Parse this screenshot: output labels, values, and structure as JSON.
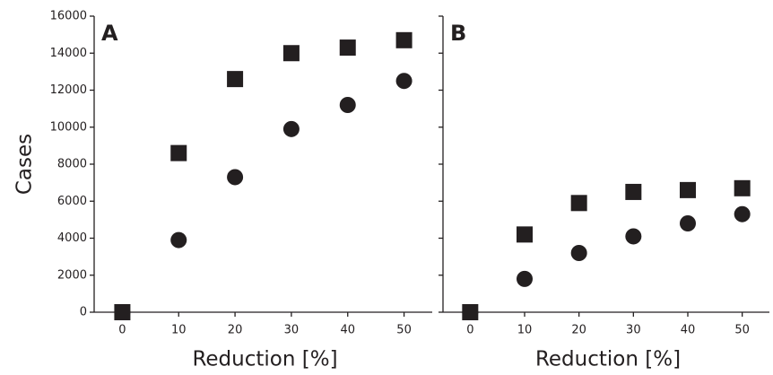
{
  "chart_data": [
    {
      "type": "scatter",
      "title": "A",
      "ylabel": "Cases",
      "xlabel": "Reduction [%]",
      "xlim": [
        -5,
        55
      ],
      "xticks": [
        0,
        10,
        20,
        30,
        40,
        50
      ],
      "ylim": [
        0,
        16000
      ],
      "yticks": [
        0,
        2000,
        4000,
        6000,
        8000,
        10000,
        12000,
        14000,
        16000
      ],
      "show_ytick_labels": true,
      "series": [
        {
          "marker": "square",
          "color": "#231f20",
          "x": [
            0,
            10,
            20,
            30,
            40,
            50
          ],
          "values": [
            0,
            8600,
            12600,
            14000,
            14300,
            14700
          ]
        },
        {
          "marker": "circle",
          "color": "#231f20",
          "x": [
            0,
            10,
            20,
            30,
            40,
            50
          ],
          "values": [
            0,
            3900,
            7300,
            9900,
            11200,
            12500
          ]
        }
      ]
    },
    {
      "type": "scatter",
      "title": "B",
      "xlabel": "Reduction [%]",
      "xlim": [
        -5,
        55
      ],
      "xticks": [
        0,
        10,
        20,
        30,
        40,
        50
      ],
      "ylim": [
        0,
        16000
      ],
      "yticks": [
        0,
        2000,
        4000,
        6000,
        8000,
        10000,
        12000,
        14000,
        16000
      ],
      "show_ytick_labels": false,
      "series": [
        {
          "marker": "square",
          "color": "#231f20",
          "x": [
            0,
            10,
            20,
            30,
            40,
            50
          ],
          "values": [
            0,
            4200,
            5900,
            6500,
            6600,
            6700
          ]
        },
        {
          "marker": "circle",
          "color": "#231f20",
          "x": [
            0,
            10,
            20,
            30,
            40,
            50
          ],
          "values": [
            0,
            1800,
            3200,
            4100,
            4800,
            5300
          ]
        }
      ]
    }
  ]
}
